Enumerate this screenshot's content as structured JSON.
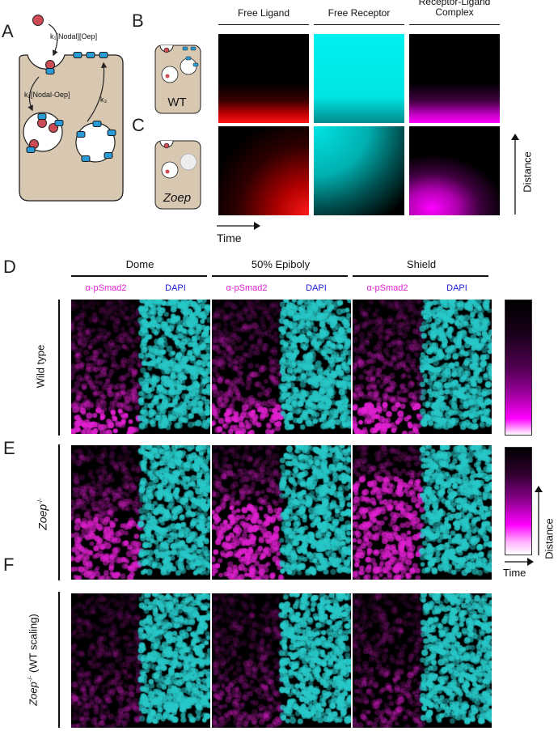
{
  "panels": {
    "A": "A",
    "B": "B",
    "C": "C",
    "D": "D",
    "E": "E",
    "F": "F"
  },
  "panelA": {
    "rate1": "k₁[Nodal][Oep]",
    "rate2": "k₂[Nodal-Oep]",
    "rate3": "k₃"
  },
  "panelB": {
    "cell_label": "WT"
  },
  "panelC": {
    "cell_label": "Zoep"
  },
  "sim_columns": [
    "Free Ligand",
    "Free Receptor",
    "Receptor-Ligand\nComplex"
  ],
  "sim_axes": {
    "time": "Time",
    "distance": "Distance"
  },
  "stages": [
    "Dome",
    "50% Epiboly",
    "Shield"
  ],
  "stain_labels": {
    "psmad": "α-pSmad2",
    "dapi": "DAPI"
  },
  "rows": {
    "wt": "Wild type",
    "zoep": "Zoep",
    "zoep_sup": "-/-",
    "zoep_scaled_tail": " (WT scaling)"
  },
  "heat_axes": {
    "time": "Time",
    "distance": "Distance"
  },
  "colors": {
    "ligand": "#ff1a1a",
    "receptor": "#00e5e5",
    "complex": "#ff00ff",
    "psmad": "#e020d0",
    "dapi": "#1a1adc",
    "cell": "#d8c8b2",
    "oep": "#2a9ad6",
    "nodal": "#cc4b55"
  }
}
